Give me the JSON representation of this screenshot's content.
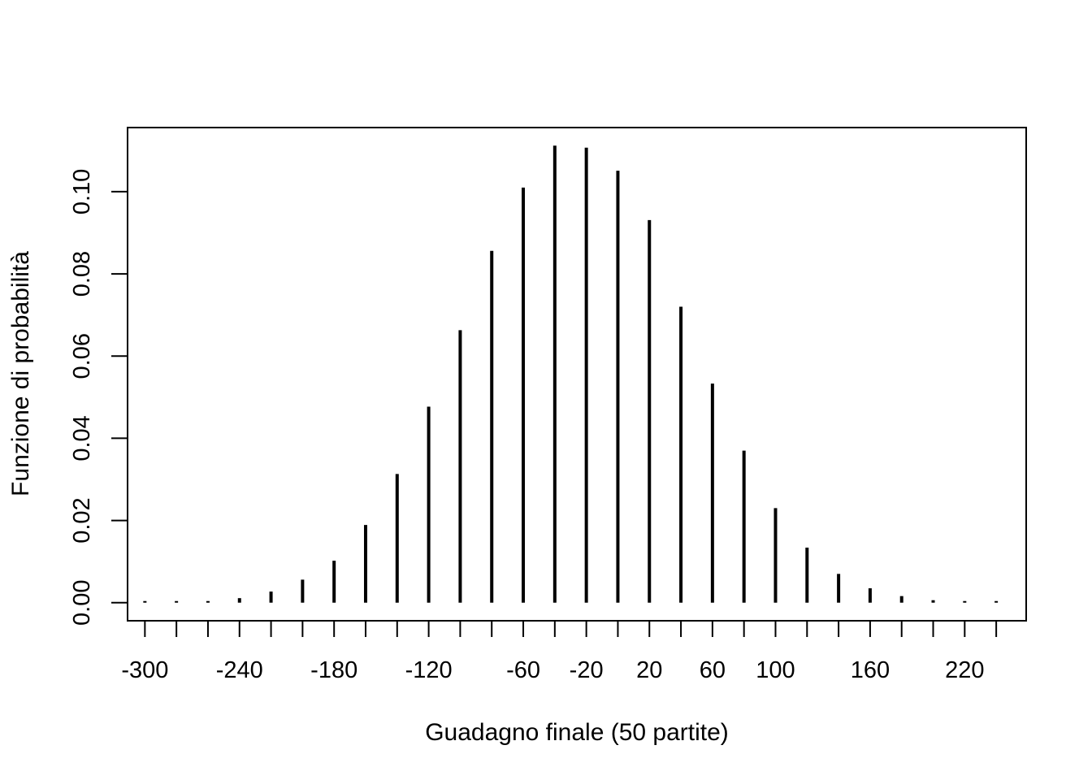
{
  "chart_data": {
    "type": "bar",
    "title": "",
    "xlabel": "Guadagno finale (50 partite)",
    "ylabel": "Funzione di probabilità",
    "x": [
      -300,
      -280,
      -260,
      -240,
      -220,
      -200,
      -180,
      -160,
      -140,
      -120,
      -100,
      -80,
      -60,
      -40,
      -20,
      0,
      20,
      40,
      60,
      80,
      100,
      120,
      140,
      160,
      180,
      200,
      220,
      240
    ],
    "values": [
      0.0,
      0.0001,
      0.0003,
      0.0011,
      0.0027,
      0.0056,
      0.0102,
      0.0189,
      0.0313,
      0.0477,
      0.0663,
      0.0856,
      0.101,
      0.1112,
      0.1107,
      0.1051,
      0.0931,
      0.072,
      0.0533,
      0.037,
      0.023,
      0.0134,
      0.007,
      0.0035,
      0.0016,
      0.0006,
      0.0002,
      0.0001
    ],
    "xlim": [
      -311,
      259
    ],
    "ylim": [
      -0.0044,
      0.1156
    ],
    "x_tick_values": [
      -300,
      -280,
      -260,
      -240,
      -220,
      -200,
      -180,
      -160,
      -140,
      -120,
      -100,
      -80,
      -60,
      -40,
      -20,
      0,
      20,
      40,
      60,
      80,
      100,
      120,
      140,
      160,
      180,
      200,
      220,
      240
    ],
    "x_tick_labels": [
      {
        "value": -300,
        "label": "-300"
      },
      {
        "value": -240,
        "label": "-240"
      },
      {
        "value": -180,
        "label": "-180"
      },
      {
        "value": -120,
        "label": "-120"
      },
      {
        "value": -60,
        "label": "-60"
      },
      {
        "value": -20,
        "label": "-20"
      },
      {
        "value": 20,
        "label": "20"
      },
      {
        "value": 60,
        "label": "60"
      },
      {
        "value": 100,
        "label": "100"
      },
      {
        "value": 160,
        "label": "160"
      },
      {
        "value": 220,
        "label": "220"
      }
    ],
    "y_ticks": [
      {
        "value": 0.0,
        "label": "0.00"
      },
      {
        "value": 0.02,
        "label": "0.02"
      },
      {
        "value": 0.04,
        "label": "0.04"
      },
      {
        "value": 0.06,
        "label": "0.06"
      },
      {
        "value": 0.08,
        "label": "0.08"
      },
      {
        "value": 0.1,
        "label": "0.10"
      }
    ],
    "grid": false,
    "legend": "none",
    "colors": {
      "line": "#000000",
      "background": "#ffffff"
    }
  }
}
